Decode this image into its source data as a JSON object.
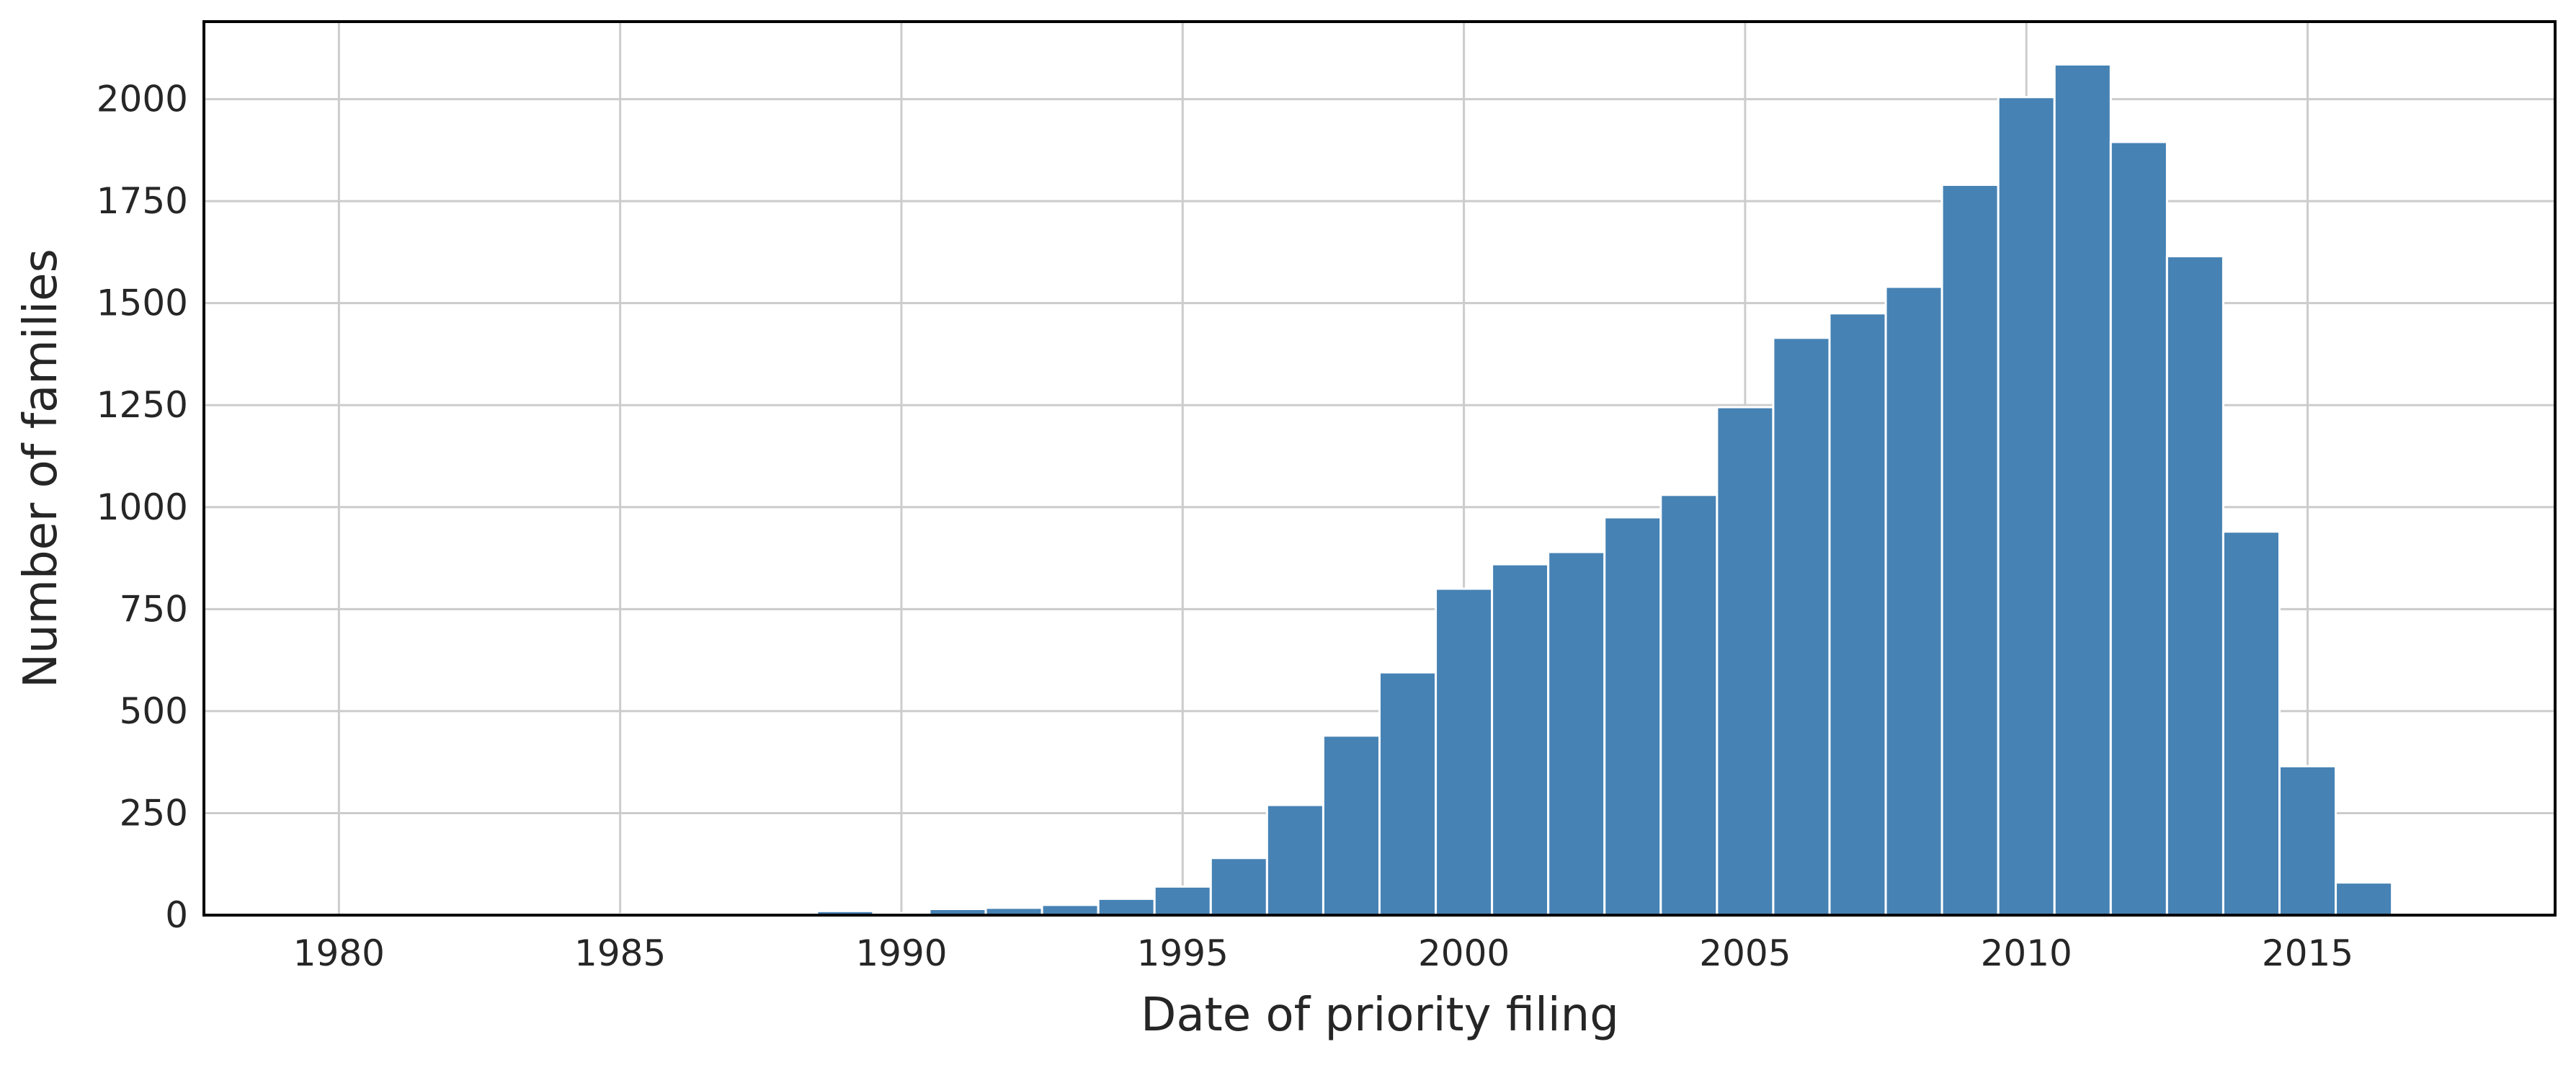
{
  "chart_data": {
    "type": "histogram",
    "xlabel": "Date of priority filing",
    "ylabel": "Number of families",
    "bins": [
      1979.5,
      1980.5,
      1981.5,
      1982.5,
      1983.5,
      1984.5,
      1985.5,
      1986.5,
      1987.5,
      1988.5,
      1989.5,
      1990.5,
      1991.5,
      1992.5,
      1993.5,
      1994.5,
      1995.5,
      1996.5,
      1997.5,
      1998.5,
      1999.5,
      2000.5,
      2001.5,
      2002.5,
      2003.5,
      2004.5,
      2005.5,
      2006.5,
      2007.5,
      2008.5,
      2009.5,
      2010.5,
      2011.5,
      2012.5,
      2013.5,
      2014.5,
      2015.5,
      2016.5,
      2017.5
    ],
    "counts": [
      1,
      1,
      0,
      1,
      1,
      2,
      2,
      3,
      4,
      10,
      5,
      15,
      18,
      25,
      40,
      70,
      140,
      270,
      440,
      595,
      800,
      860,
      890,
      975,
      1030,
      1245,
      1415,
      1475,
      1540,
      1790,
      2005,
      2085,
      1895,
      1615,
      940,
      365,
      80,
      3
    ],
    "color": "#4682b4",
    "xlim": [
      1977.6,
      2019.4
    ],
    "xticks": [
      1980,
      1985,
      1990,
      1995,
      2000,
      2005,
      2010,
      2015
    ],
    "ylim": [
      0,
      2190
    ],
    "yticks": [
      0,
      250,
      500,
      750,
      1000,
      1250,
      1500,
      1750,
      2000
    ],
    "grid": true
  }
}
